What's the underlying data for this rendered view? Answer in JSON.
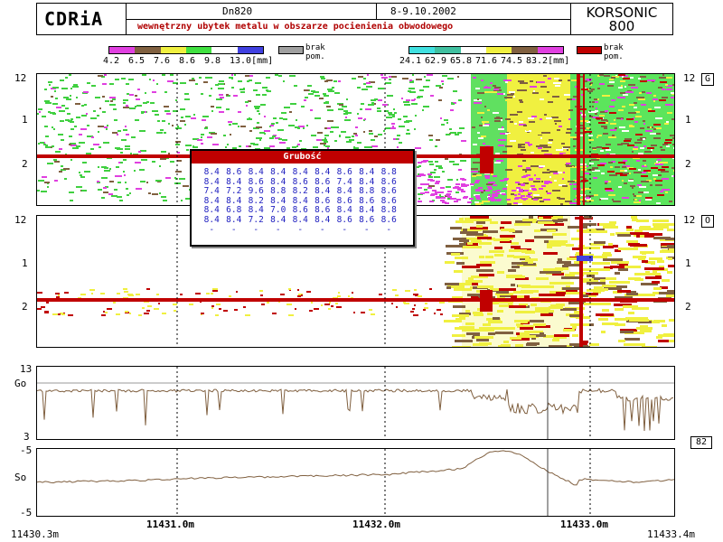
{
  "header": {
    "logo": "CDRiA",
    "pipe": "Dn820",
    "date": "8-9.10.2002",
    "description": "wewnętrzny ubytek metalu w obszarze pocienienia obwodowego",
    "brand_line1": "KORSONIC",
    "brand_line2": "800"
  },
  "legend_left": {
    "colors": [
      "#e040e0",
      "#806040",
      "#f0f040",
      "#40e040",
      "#ffffff",
      "#4040e0"
    ],
    "labels": [
      "4.2",
      "6.5",
      "7.6",
      "8.6",
      "9.8",
      "13.0[mm]"
    ],
    "missing_color": "#a0a0a0",
    "missing_label_1": "brak",
    "missing_label_2": "pom."
  },
  "legend_right": {
    "colors": [
      "#40e0e0",
      "#40c0a0",
      "#ffffff",
      "#f0f040",
      "#806040",
      "#e040e0"
    ],
    "labels": [
      "24.1",
      "62.9",
      "65.8",
      "71.6",
      "74.5",
      "83.2[mm]"
    ],
    "missing_color": "#c00000",
    "missing_label_1": "brak",
    "missing_label_2": "pom."
  },
  "panel_g": {
    "tag": "G",
    "y_labels_left": [
      "12",
      "1",
      "2"
    ],
    "y_labels_right": [
      "12",
      "1",
      "2"
    ]
  },
  "panel_o": {
    "tag": "O",
    "y_labels_left": [
      "12",
      "1",
      "2"
    ],
    "y_labels_right": [
      "12",
      "1",
      "2"
    ]
  },
  "panel_go": {
    "label": "Go",
    "top": "13",
    "bottom": "3",
    "side_value": "82"
  },
  "panel_so": {
    "label": "So",
    "top": "-5",
    "zero": "0",
    "bottom": "-5"
  },
  "x_axis": {
    "start": "11430.3m",
    "ticks": [
      "11431.0m",
      "11432.0m",
      "11433.0m"
    ],
    "end": "11433.4m"
  },
  "popup": {
    "title": "Grubość",
    "rows": [
      [
        "8.4",
        "8.6",
        "8.4",
        "8.4",
        "8.4",
        "8.4",
        "8.6",
        "8.4",
        "8.8"
      ],
      [
        "8.4",
        "8.4",
        "8.6",
        "8.4",
        "8.6",
        "8.6",
        "7.4",
        "8.4",
        "8.6"
      ],
      [
        "7.4",
        "7.2",
        "9.6",
        "8.8",
        "8.2",
        "8.4",
        "8.4",
        "8.8",
        "8.6"
      ],
      [
        "8.4",
        "8.4",
        "8.2",
        "8.4",
        "8.4",
        "8.6",
        "8.6",
        "8.6",
        "8.6"
      ],
      [
        "8.4",
        "6.8",
        "8.4",
        "7.0",
        "8.6",
        "8.6",
        "8.4",
        "8.4",
        "8.8"
      ],
      [
        "8.4",
        "8.4",
        "7.2",
        "8.4",
        "8.4",
        "8.4",
        "8.6",
        "8.6",
        "8.6"
      ],
      [
        "-",
        "-",
        "-",
        "-",
        "-",
        "-",
        "-",
        "-",
        "-"
      ]
    ]
  }
}
